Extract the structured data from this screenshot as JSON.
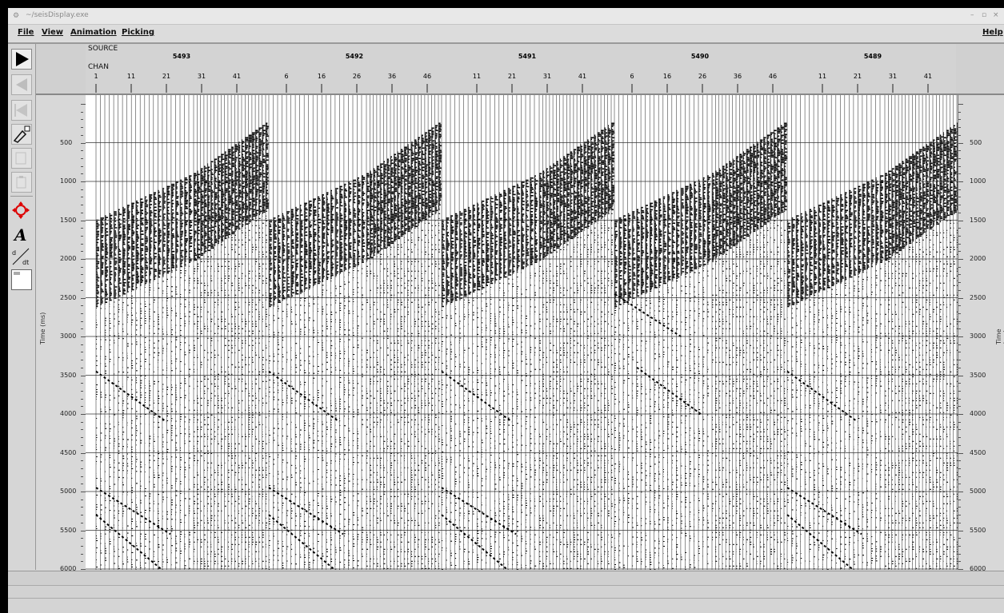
{
  "window": {
    "title": "~/seisDisplay.exe",
    "controls": [
      "–",
      "▫",
      "×"
    ]
  },
  "menu": {
    "file": "File",
    "view": "View",
    "animation": "Animation",
    "picking": "Picking",
    "help": "Help"
  },
  "toolbar": {
    "items": [
      {
        "icon": "play-icon",
        "symbol": "▶"
      },
      {
        "icon": "step-back-icon",
        "symbol": "◀"
      },
      {
        "icon": "rewind-icon",
        "symbol": "◀"
      },
      {
        "icon": "pick-tool-icon",
        "symbol": "✐"
      },
      {
        "icon": "copy-icon",
        "symbol": "▭"
      },
      {
        "icon": "paste-icon",
        "symbol": "▭"
      },
      {
        "icon": "pan-crosshair-icon",
        "symbol": "✥"
      },
      {
        "icon": "text-annotation-icon",
        "symbol": "A"
      },
      {
        "icon": "derivative-icon",
        "symbol": "d/dt"
      },
      {
        "icon": "color-box-icon",
        "symbol": ""
      }
    ]
  },
  "header": {
    "source_label": "SOURCE",
    "chan_label": "CHAN",
    "gathers": [
      {
        "source": "5493",
        "channels": [
          "1",
          "11",
          "21",
          "31",
          "41"
        ]
      },
      {
        "source": "5492",
        "channels": [
          "6",
          "16",
          "26",
          "36",
          "46"
        ]
      },
      {
        "source": "5491",
        "channels": [
          "11",
          "21",
          "31",
          "41"
        ]
      },
      {
        "source": "5490",
        "channels": [
          "6",
          "16",
          "26",
          "36",
          "46"
        ]
      },
      {
        "source": "5489",
        "channels": [
          "11",
          "21",
          "31",
          "41"
        ]
      }
    ]
  },
  "axis": {
    "ylabel": "Time (ms)",
    "ticks": [
      "500",
      "1000",
      "1500",
      "2000",
      "2500",
      "3000",
      "3500",
      "4000",
      "4500",
      "5000",
      "5500",
      "6000"
    ]
  },
  "colors": {
    "trace": "#000000",
    "background": "#ffffff",
    "panel": "#d6d6d6"
  }
}
